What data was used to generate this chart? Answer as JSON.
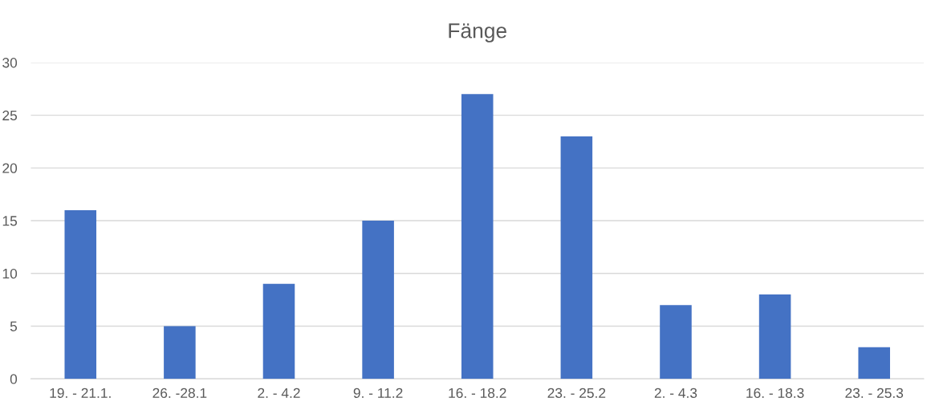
{
  "chart_data": {
    "type": "bar",
    "title": "Fänge",
    "categories": [
      "19. - 21.1.",
      "26. -28.1",
      "2. - 4.2",
      "9. - 11.2",
      "16. - 18.2",
      "23. - 25.2",
      "2. - 4.3",
      "16. - 18.3",
      "23. - 25.3"
    ],
    "values": [
      16,
      5,
      9,
      15,
      27,
      23,
      7,
      8,
      3
    ],
    "color": "#4472c4",
    "ylim": [
      0,
      30
    ],
    "yticks": [
      0,
      5,
      10,
      15,
      20,
      25,
      30
    ],
    "grid": "y"
  }
}
